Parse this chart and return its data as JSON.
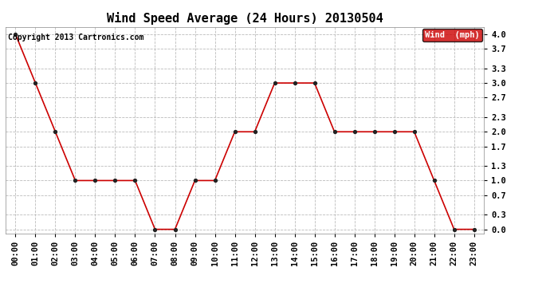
{
  "title": "Wind Speed Average (24 Hours) 20130504",
  "copyright": "Copyright 2013 Cartronics.com",
  "legend_label": "Wind  (mph)",
  "x_labels": [
    "00:00",
    "01:00",
    "02:00",
    "03:00",
    "04:00",
    "05:00",
    "06:00",
    "07:00",
    "08:00",
    "09:00",
    "10:00",
    "11:00",
    "12:00",
    "13:00",
    "14:00",
    "15:00",
    "16:00",
    "17:00",
    "18:00",
    "19:00",
    "20:00",
    "21:00",
    "22:00",
    "23:00"
  ],
  "y_values": [
    4.0,
    3.0,
    2.0,
    1.0,
    1.0,
    1.0,
    1.0,
    0.0,
    0.0,
    1.0,
    1.0,
    2.0,
    2.0,
    3.0,
    3.0,
    3.0,
    2.0,
    2.0,
    2.0,
    2.0,
    2.0,
    1.0,
    0.0,
    0.0
  ],
  "y_ticks": [
    0.0,
    0.3,
    0.7,
    1.0,
    1.3,
    1.7,
    2.0,
    2.3,
    2.7,
    3.0,
    3.3,
    3.7,
    4.0
  ],
  "ylim": [
    -0.08,
    4.15
  ],
  "line_color": "#cc0000",
  "marker_color": "#222222",
  "bg_color": "#ffffff",
  "grid_color": "#bbbbbb",
  "title_fontsize": 11,
  "tick_fontsize": 7.5,
  "copyright_fontsize": 7,
  "legend_bg": "#cc0000",
  "legend_text_color": "#ffffff"
}
